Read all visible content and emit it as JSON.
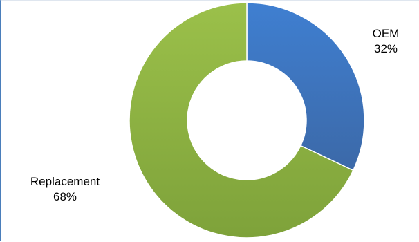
{
  "chart_data": {
    "type": "pie",
    "variant": "donut",
    "title": "",
    "categories": [
      "OEM",
      "Replacement"
    ],
    "values": [
      32,
      68
    ],
    "value_labels": [
      "32%",
      "68%"
    ],
    "colors": [
      "#4a7ebb",
      "#8db33f"
    ],
    "legend": "none",
    "data_labels": "outside"
  }
}
